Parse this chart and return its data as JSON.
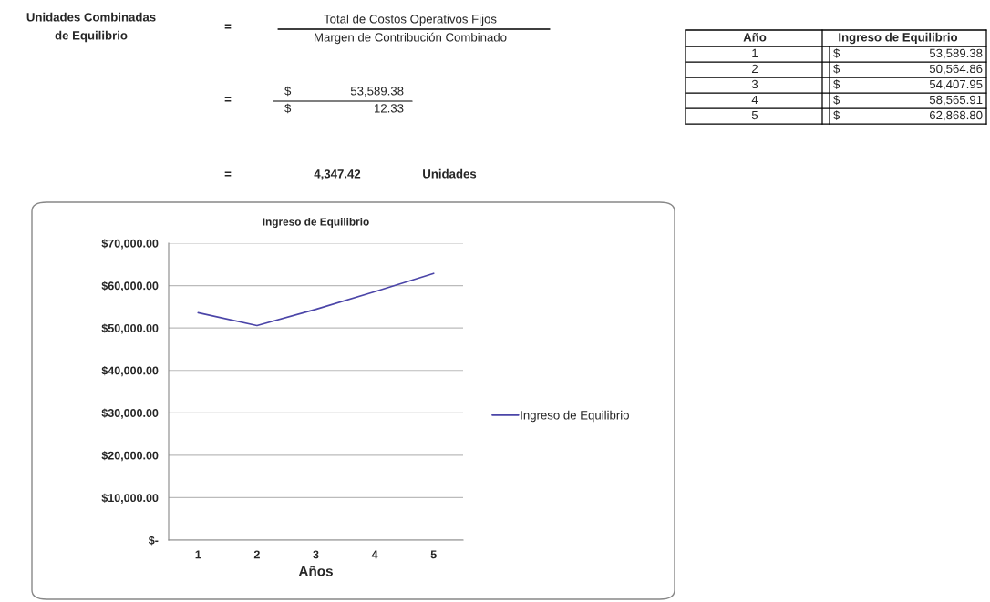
{
  "chart_data": {
    "type": "line",
    "title": "Ingreso de Equilibrio",
    "xlabel": "Años",
    "categories": [
      "1",
      "2",
      "3",
      "4",
      "5"
    ],
    "series": [
      {
        "name": "Ingreso de Equilibrio",
        "color": "#4b45a8",
        "values": [
          53589.38,
          50564.86,
          54407.95,
          58565.91,
          62868.8
        ],
        "value_labels": [
          "$ 53,589.38",
          "$ 50,564.86",
          "$ 54,407.95",
          "$ 58,565.91",
          "$ 62,868.80"
        ]
      }
    ],
    "ylim": [
      0,
      70000
    ],
    "yticks": [
      {
        "value": 0,
        "label": "$-"
      },
      {
        "value": 10000,
        "label": "$10,000.00"
      },
      {
        "value": 20000,
        "label": "$20,000.00"
      },
      {
        "value": 30000,
        "label": "$30,000.00"
      },
      {
        "value": 40000,
        "label": "$40,000.00"
      },
      {
        "value": 50000,
        "label": "$50,000.00"
      },
      {
        "value": 60000,
        "label": "$60,000.00"
      },
      {
        "value": 70000,
        "label": "$70,000.00"
      }
    ],
    "grid": "y",
    "legend": "right",
    "marker": "none",
    "line_style": "solid",
    "annotations": [
      "Unidades Combinadas",
      "de Equilibrio",
      "=",
      "Total de Costos Operativos Fijos",
      "Margen de Contribución Combinado",
      "=",
      "$",
      "53,589.38",
      "$",
      "12.33",
      "=",
      "4,347.42",
      "Unidades",
      "Año",
      "Ingreso de Equilibrio"
    ]
  }
}
